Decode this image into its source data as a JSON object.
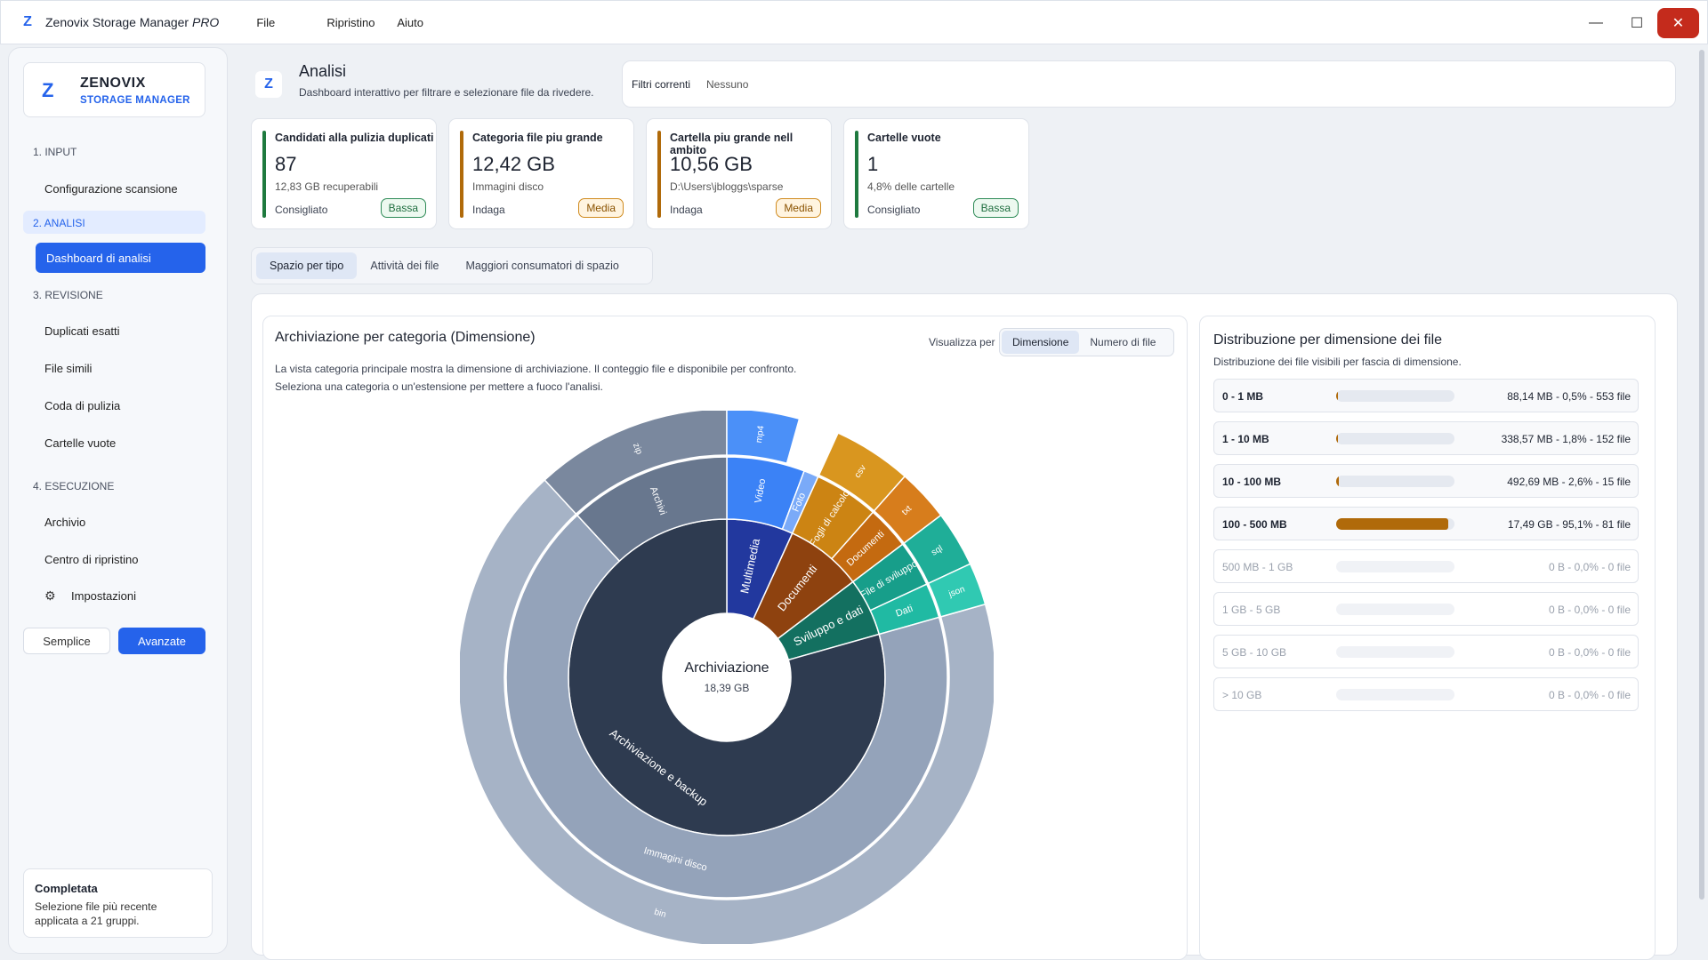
{
  "app": {
    "name": "Zenovix Storage Manager",
    "edition": "PRO"
  },
  "menu": [
    "File",
    "Ripristino",
    "Aiuto"
  ],
  "brand": {
    "name": "ZENOVIX",
    "sub": "STORAGE MANAGER"
  },
  "sidebar": {
    "sections": [
      {
        "label": "1. INPUT",
        "items": [
          "Configurazione scansione"
        ]
      },
      {
        "label": "2. ANALISI",
        "items": [
          "Dashboard di analisi"
        ]
      },
      {
        "label": "3. REVISIONE",
        "items": [
          "Duplicati esatti",
          "File simili",
          "Coda di pulizia",
          "Cartelle vuote"
        ]
      },
      {
        "label": "4. ESECUZIONE",
        "items": [
          "Archivio",
          "Centro di ripristino",
          "Impostazioni"
        ]
      }
    ],
    "mode": {
      "simple": "Semplice",
      "advanced": "Avanzate"
    },
    "status": {
      "title": "Completata",
      "text": "Selezione file più recente applicata a 21 gruppi."
    }
  },
  "header": {
    "title": "Analisi",
    "subtitle": "Dashboard interattivo per filtrare e selezionare file da rivedere."
  },
  "filters": {
    "label": "Filtri correnti",
    "value": "Nessuno"
  },
  "cards": [
    {
      "title": "Candidati alla pulizia duplicati",
      "value": "87",
      "sub": "12,83 GB recuperabili",
      "action": "Consigliato",
      "badge": "Bassa",
      "color": "#1f7a3f",
      "level": "low"
    },
    {
      "title": "Categoria file piu grande",
      "value": "12,42 GB",
      "sub": "Immagini disco",
      "action": "Indaga",
      "badge": "Media",
      "color": "#b06a0a",
      "level": "mid"
    },
    {
      "title": "Cartella piu grande nell ambito",
      "value": "10,56 GB",
      "sub": "D:\\Users\\jbloggs\\sparse",
      "action": "Indaga",
      "badge": "Media",
      "color": "#b06a0a",
      "level": "mid"
    },
    {
      "title": "Cartelle vuote",
      "value": "1",
      "sub": "4,8% delle cartelle",
      "action": "Consigliato",
      "badge": "Bassa",
      "color": "#1f7a3f",
      "level": "low"
    }
  ],
  "tabs": [
    "Spazio per tipo",
    "Attività dei file",
    "Maggiori consumatori di spazio"
  ],
  "chart": {
    "title": "Archiviazione per categoria (Dimensione)",
    "desc": "La vista categoria principale mostra la dimensione di archiviazione. Il conteggio file e disponibile per confronto. Seleziona una categoria o un'estensione per mettere a fuoco l'analisi.",
    "view_label": "Visualizza per",
    "view_options": [
      "Dimensione",
      "Numero di file"
    ],
    "center_label": "Archiviazione",
    "center_value": "18,39 GB"
  },
  "chart_data": {
    "type": "sunburst",
    "unit": "GB",
    "total": 18.39,
    "rings": [
      {
        "level": 1,
        "items": [
          {
            "name": "Archiviazione e backup",
            "value": 14.6,
            "color": "#2e3b50"
          },
          {
            "name": "Multimedia",
            "value": 1.25,
            "color": "#22389e"
          },
          {
            "name": "Documenti",
            "value": 1.45,
            "color": "#8e420f"
          },
          {
            "name": "Sviluppo e dati",
            "value": 1.09,
            "color": "#137060"
          }
        ]
      },
      {
        "level": 2,
        "items": [
          {
            "name": "Immagini disco",
            "value": 12.42,
            "color": "#94a3ba"
          },
          {
            "name": "Archivi",
            "value": 2.18,
            "color": "#68778e"
          },
          {
            "name": "Video",
            "value": 1.05,
            "color": "#3b82f6"
          },
          {
            "name": "Foto",
            "value": 0.2,
            "color": "#7aaaf8"
          },
          {
            "name": "Fogli di calcolo",
            "value": 0.87,
            "color": "#cc8413"
          },
          {
            "name": "Documenti",
            "value": 0.58,
            "color": "#c46a10"
          },
          {
            "name": "File di sviluppo",
            "value": 0.62,
            "color": "#179e8a"
          },
          {
            "name": "Dati",
            "value": 0.47,
            "color": "#20baa3"
          }
        ]
      },
      {
        "level": 3,
        "items": [
          {
            "name": "bin",
            "value": 12.42
          },
          {
            "name": "zip",
            "value": 2.18
          },
          {
            "name": "mp4",
            "value": 0.8
          },
          {
            "name": "csv",
            "value": 0.87
          },
          {
            "name": "txt",
            "value": 0.58
          },
          {
            "name": "sql",
            "value": 0.62
          },
          {
            "name": "json",
            "value": 0.47
          }
        ]
      }
    ]
  },
  "dist": {
    "title": "Distribuzione per dimensione dei file",
    "sub": "Distribuzione dei file visibili per fascia di dimensione.",
    "rows": [
      {
        "label": "0 - 1 MB",
        "value": "88,14 MB - 0,5% - 553 file",
        "pct": 0.5
      },
      {
        "label": "1 - 10 MB",
        "value": "338,57 MB - 1,8% - 152 file",
        "pct": 1.8
      },
      {
        "label": "10 - 100 MB",
        "value": "492,69 MB - 2,6% - 15 file",
        "pct": 2.6
      },
      {
        "label": "100 - 500 MB",
        "value": "17,49 GB - 95,1% - 81 file",
        "pct": 95.1
      },
      {
        "label": "500 MB - 1 GB",
        "value": "0 B - 0,0% - 0 file",
        "pct": 0
      },
      {
        "label": "1 GB - 5 GB",
        "value": "0 B - 0,0% - 0 file",
        "pct": 0
      },
      {
        "label": "5 GB - 10 GB",
        "value": "0 B - 0,0% - 0 file",
        "pct": 0
      },
      {
        "label": "> 10 GB",
        "value": "0 B - 0,0% - 0 file",
        "pct": 0
      }
    ]
  }
}
